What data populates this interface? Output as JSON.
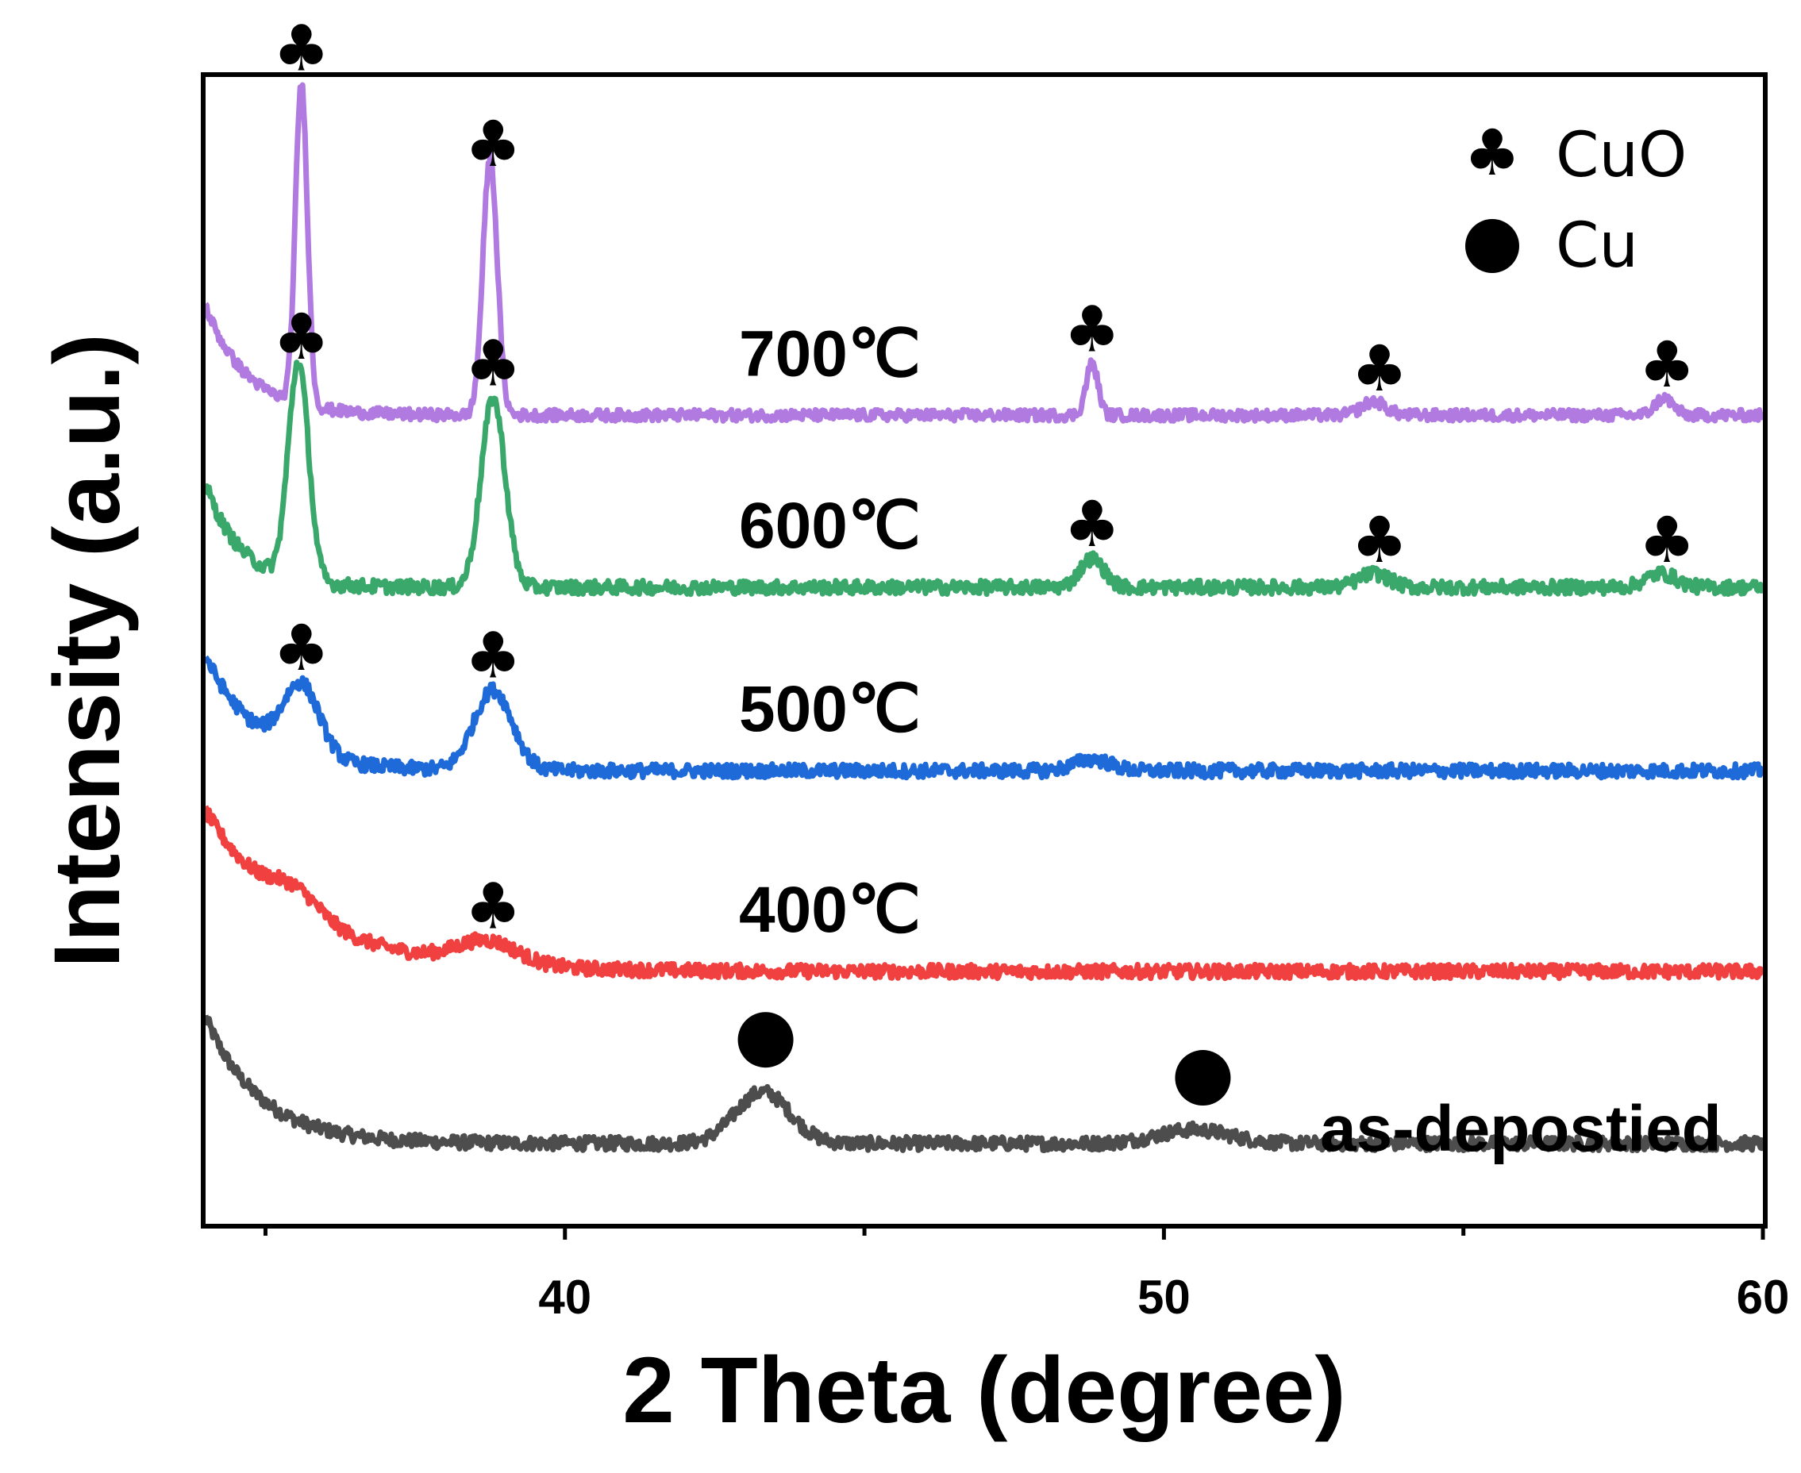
{
  "chart_data": {
    "type": "line",
    "xlabel": "2 Theta (degree)",
    "ylabel": "Intensity (a.u.)",
    "xlim": [
      34,
      60
    ],
    "x_ticks": [
      40,
      50,
      60
    ],
    "x_minor_ticks": [
      35,
      45,
      55
    ],
    "y_ticks": [],
    "legend": [
      {
        "symbol": "club",
        "label": "CuO"
      },
      {
        "symbol": "circle",
        "label": "Cu"
      }
    ],
    "legend_position": "top-right",
    "series": [
      {
        "name": "as-depostied",
        "label": "as-depostied",
        "color": "#4d4d4d",
        "baseline": 0.07,
        "rise": {
          "amp": 0.11,
          "decay": 0.9
        },
        "noise": 0.006,
        "peaks": [
          {
            "x": 43.3,
            "h": 0.045,
            "w": 0.45
          },
          {
            "x": 50.5,
            "h": 0.012,
            "w": 0.6
          }
        ],
        "markers": [
          {
            "x": 43.35,
            "type": "circle"
          },
          {
            "x": 50.65,
            "type": "circle"
          }
        ]
      },
      {
        "name": "400℃",
        "label": "400℃",
        "color": "#f04040",
        "baseline": 0.22,
        "rise": {
          "amp": 0.14,
          "decay": 1.6
        },
        "noise": 0.006,
        "peaks": [
          {
            "x": 35.5,
            "h": 0.02,
            "w": 0.4
          },
          {
            "x": 38.7,
            "h": 0.02,
            "w": 0.5
          }
        ],
        "markers": [
          {
            "x": 38.8,
            "type": "club"
          }
        ]
      },
      {
        "name": "500℃",
        "label": "500℃",
        "color": "#1e6ad8",
        "baseline": 0.395,
        "rise": {
          "amp": 0.1,
          "decay": 0.9
        },
        "noise": 0.006,
        "peaks": [
          {
            "x": 35.6,
            "h": 0.06,
            "w": 0.3
          },
          {
            "x": 38.8,
            "h": 0.07,
            "w": 0.32
          },
          {
            "x": 48.8,
            "h": 0.01,
            "w": 0.3
          }
        ],
        "markers": [
          {
            "x": 35.6,
            "type": "club"
          },
          {
            "x": 38.8,
            "type": "club"
          }
        ]
      },
      {
        "name": "600℃",
        "label": "600℃",
        "color": "#3aa86a",
        "baseline": 0.555,
        "rise": {
          "amp": 0.09,
          "decay": 0.6
        },
        "noise": 0.006,
        "peaks": [
          {
            "x": 35.55,
            "h": 0.19,
            "w": 0.17
          },
          {
            "x": 38.8,
            "h": 0.165,
            "w": 0.2
          },
          {
            "x": 48.8,
            "h": 0.025,
            "w": 0.2
          },
          {
            "x": 53.5,
            "h": 0.012,
            "w": 0.25
          },
          {
            "x": 58.3,
            "h": 0.012,
            "w": 0.25
          }
        ],
        "markers": [
          {
            "x": 35.6,
            "type": "club"
          },
          {
            "x": 38.8,
            "type": "club"
          },
          {
            "x": 48.8,
            "type": "club"
          },
          {
            "x": 53.6,
            "type": "club"
          },
          {
            "x": 58.4,
            "type": "club"
          }
        ]
      },
      {
        "name": "700℃",
        "label": "700℃",
        "color": "#b07ae0",
        "baseline": 0.705,
        "rise": {
          "amp": 0.095,
          "decay": 0.7
        },
        "noise": 0.005,
        "peaks": [
          {
            "x": 35.6,
            "h": 0.28,
            "w": 0.1
          },
          {
            "x": 38.75,
            "h": 0.225,
            "w": 0.12
          },
          {
            "x": 48.8,
            "h": 0.045,
            "w": 0.1
          },
          {
            "x": 53.5,
            "h": 0.012,
            "w": 0.2
          },
          {
            "x": 58.35,
            "h": 0.015,
            "w": 0.15
          }
        ],
        "markers": [
          {
            "x": 35.6,
            "type": "club"
          },
          {
            "x": 38.8,
            "type": "club"
          },
          {
            "x": 48.8,
            "type": "club"
          },
          {
            "x": 53.6,
            "type": "club"
          },
          {
            "x": 58.4,
            "type": "club"
          }
        ]
      }
    ]
  }
}
